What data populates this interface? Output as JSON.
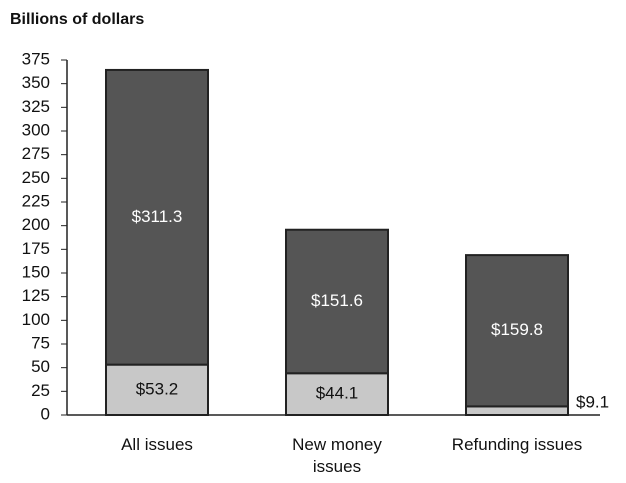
{
  "chart_data": {
    "type": "stacked_bar",
    "y_label": "Billions of dollars",
    "categories": [
      "All issues",
      "New money issues",
      "Refunding issues"
    ],
    "series": [
      {
        "color": "#c8c8c8",
        "values": [
          53.2,
          44.1,
          9.1
        ],
        "value_labels": [
          "$53.2",
          "$44.1",
          "$9.1"
        ]
      },
      {
        "color": "#555555",
        "values": [
          311.3,
          151.6,
          159.8
        ],
        "value_labels": [
          "$311.3",
          "$151.6",
          "$159.8"
        ]
      }
    ],
    "ylim": [
      0,
      375
    ],
    "yticks": [
      0,
      25,
      50,
      75,
      100,
      125,
      150,
      175,
      200,
      225,
      250,
      275,
      300,
      325,
      350,
      375
    ],
    "grid": false
  }
}
